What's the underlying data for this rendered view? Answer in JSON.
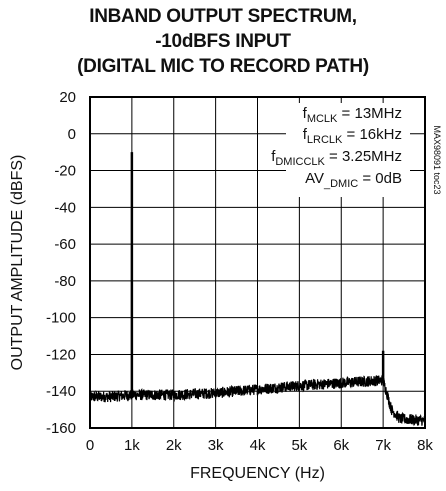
{
  "chart_data": {
    "type": "line",
    "title_lines": [
      "INBAND OUTPUT SPECTRUM,",
      "-10dBFS INPUT",
      "(DIGITAL MIC TO RECORD PATH)"
    ],
    "xlabel": "FREQUENCY (Hz)",
    "ylabel": "OUTPUT AMPLITUDE (dBFS)",
    "xlim": [
      0,
      8000
    ],
    "ylim": [
      -160,
      20
    ],
    "xticks": [
      0,
      1000,
      2000,
      3000,
      4000,
      5000,
      6000,
      7000,
      8000
    ],
    "xtick_labels": [
      "0",
      "1k",
      "2k",
      "3k",
      "4k",
      "5k",
      "6k",
      "7k",
      "8k"
    ],
    "yticks": [
      20,
      0,
      -20,
      -40,
      -60,
      -80,
      -100,
      -120,
      -140,
      -160
    ],
    "ytick_labels": [
      "20",
      "0",
      "-20",
      "-40",
      "-60",
      "-80",
      "-100",
      "-120",
      "-140",
      "-160"
    ],
    "grid": true,
    "annotations": [
      {
        "main": "f",
        "sub": "MCLK",
        "rest": " = 13MHz"
      },
      {
        "main": "f",
        "sub": "LRCLK",
        "rest": " = 16kHz"
      },
      {
        "main": "f",
        "sub": "DMICCLK",
        "rest": " = 3.25MHz"
      },
      {
        "main": "AV",
        "sub": "_DMIC",
        "rest": " = 0dB"
      }
    ],
    "part_number": "MAX98091 toc23",
    "series": [
      {
        "color": "#000000",
        "noise_floor": {
          "x": [
            0,
            500,
            1000,
            2000,
            3000,
            4000,
            5000,
            6000,
            7000,
            7200,
            7400,
            8000
          ],
          "y": [
            -143,
            -143,
            -142,
            -142,
            -141,
            -139,
            -137,
            -135.5,
            -134,
            -150,
            -155,
            -156
          ]
        },
        "spikes": [
          {
            "x": 1000,
            "y": -10
          },
          {
            "x": 7000,
            "y": -118
          }
        ]
      }
    ]
  }
}
